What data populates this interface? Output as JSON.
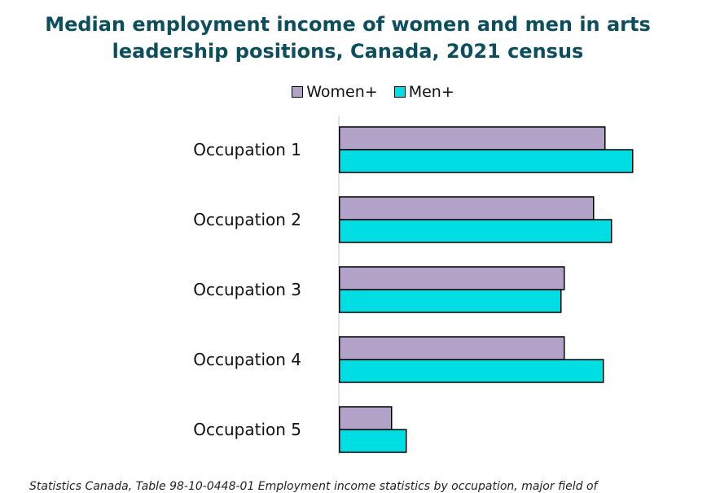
{
  "title_lines": [
    "Median employment income of women and men in arts",
    "leadership positions, Canada, 2021 census"
  ],
  "legend": [
    {
      "label": "Women+",
      "color": "#b3a2c7"
    },
    {
      "label": "Men+",
      "color": "#00dde3"
    }
  ],
  "source_text": "Statistics Canada, Table 98-10-0448-01 Employment income statistics by occupation, major field of",
  "chart_data": {
    "type": "bar",
    "orientation": "horizontal",
    "categories": [
      "Occupation 1",
      "Occupation 2",
      "Occupation 3",
      "Occupation 4",
      "Occupation 5"
    ],
    "series": [
      {
        "name": "Women+",
        "color": "#b3a2c7",
        "values": [
          81500,
          78000,
          69000,
          69000,
          16000
        ]
      },
      {
        "name": "Men+",
        "color": "#00dde3",
        "values": [
          90000,
          83500,
          68000,
          81000,
          20500
        ]
      }
    ],
    "xlim": [
      0,
      100000
    ],
    "axis_labels_shown": false,
    "grid": false,
    "legend_position": "top"
  }
}
